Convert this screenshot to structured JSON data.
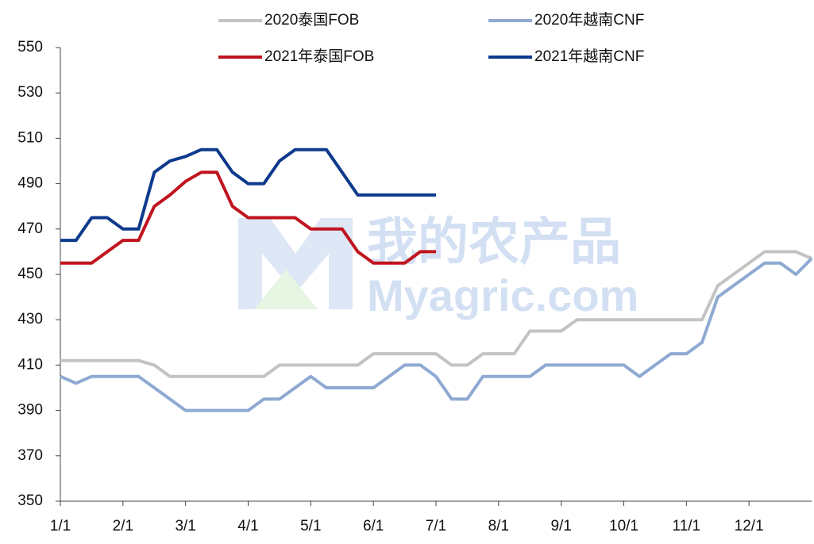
{
  "chart_data": {
    "type": "line",
    "categories": [
      "1/1",
      null,
      null,
      null,
      "2/1",
      null,
      null,
      null,
      "3/1",
      null,
      null,
      null,
      "4/1",
      null,
      null,
      null,
      "5/1",
      null,
      null,
      null,
      "6/1",
      null,
      null,
      null,
      "7/1",
      null,
      null,
      null,
      "8/1",
      null,
      null,
      null,
      "9/1",
      null,
      null,
      null,
      "10/1",
      null,
      null,
      null,
      "11/1",
      null,
      null,
      null,
      "12/1",
      null,
      null,
      null,
      null
    ],
    "series": [
      {
        "name": "2020泰国FOB",
        "color": "#c3c3c3",
        "values": [
          412,
          412,
          412,
          412,
          412,
          412,
          410,
          405,
          405,
          405,
          405,
          405,
          405,
          405,
          410,
          410,
          410,
          410,
          410,
          410,
          415,
          415,
          415,
          415,
          415,
          410,
          410,
          415,
          415,
          415,
          425,
          425,
          425,
          430,
          430,
          430,
          430,
          430,
          430,
          430,
          430,
          430,
          445,
          450,
          455,
          460,
          460,
          460,
          457
        ]
      },
      {
        "name": "2020年越南CNF",
        "color": "#8eaad2",
        "values": [
          405,
          402,
          405,
          405,
          405,
          405,
          400,
          395,
          390,
          390,
          390,
          390,
          390,
          395,
          395,
          400,
          405,
          400,
          400,
          400,
          400,
          405,
          410,
          410,
          405,
          395,
          395,
          405,
          405,
          405,
          405,
          410,
          410,
          410,
          410,
          410,
          410,
          405,
          410,
          415,
          415,
          420,
          440,
          445,
          450,
          455,
          455,
          450,
          457
        ]
      },
      {
        "name": "2021年泰国FOB",
        "color": "#c0141e",
        "values": [
          455,
          455,
          455,
          460,
          465,
          465,
          480,
          485,
          491,
          495,
          495,
          480,
          475,
          475,
          475,
          475,
          470,
          470,
          470,
          460,
          455,
          455,
          455,
          460,
          460,
          null,
          null,
          null,
          null,
          null,
          null,
          null,
          null,
          null,
          null,
          null,
          null,
          null,
          null,
          null,
          null,
          null,
          null,
          null,
          null,
          null,
          null,
          null,
          null
        ]
      },
      {
        "name": "2021年越南CNF",
        "color": "#0d3a8c",
        "values": [
          465,
          465,
          475,
          475,
          470,
          470,
          495,
          500,
          502,
          505,
          505,
          495,
          490,
          490,
          500,
          505,
          505,
          505,
          495,
          485,
          485,
          485,
          485,
          485,
          485,
          null,
          null,
          null,
          null,
          null,
          null,
          null,
          null,
          null,
          null,
          null,
          null,
          null,
          null,
          null,
          null,
          null,
          null,
          null,
          null,
          null,
          null,
          null,
          null
        ]
      }
    ],
    "ylim": [
      350,
      550
    ],
    "yticks": [
      350,
      370,
      390,
      410,
      430,
      450,
      470,
      490,
      510,
      530,
      550
    ],
    "legend": "top",
    "watermark": [
      "我的农产品",
      "Myagric.com"
    ]
  }
}
